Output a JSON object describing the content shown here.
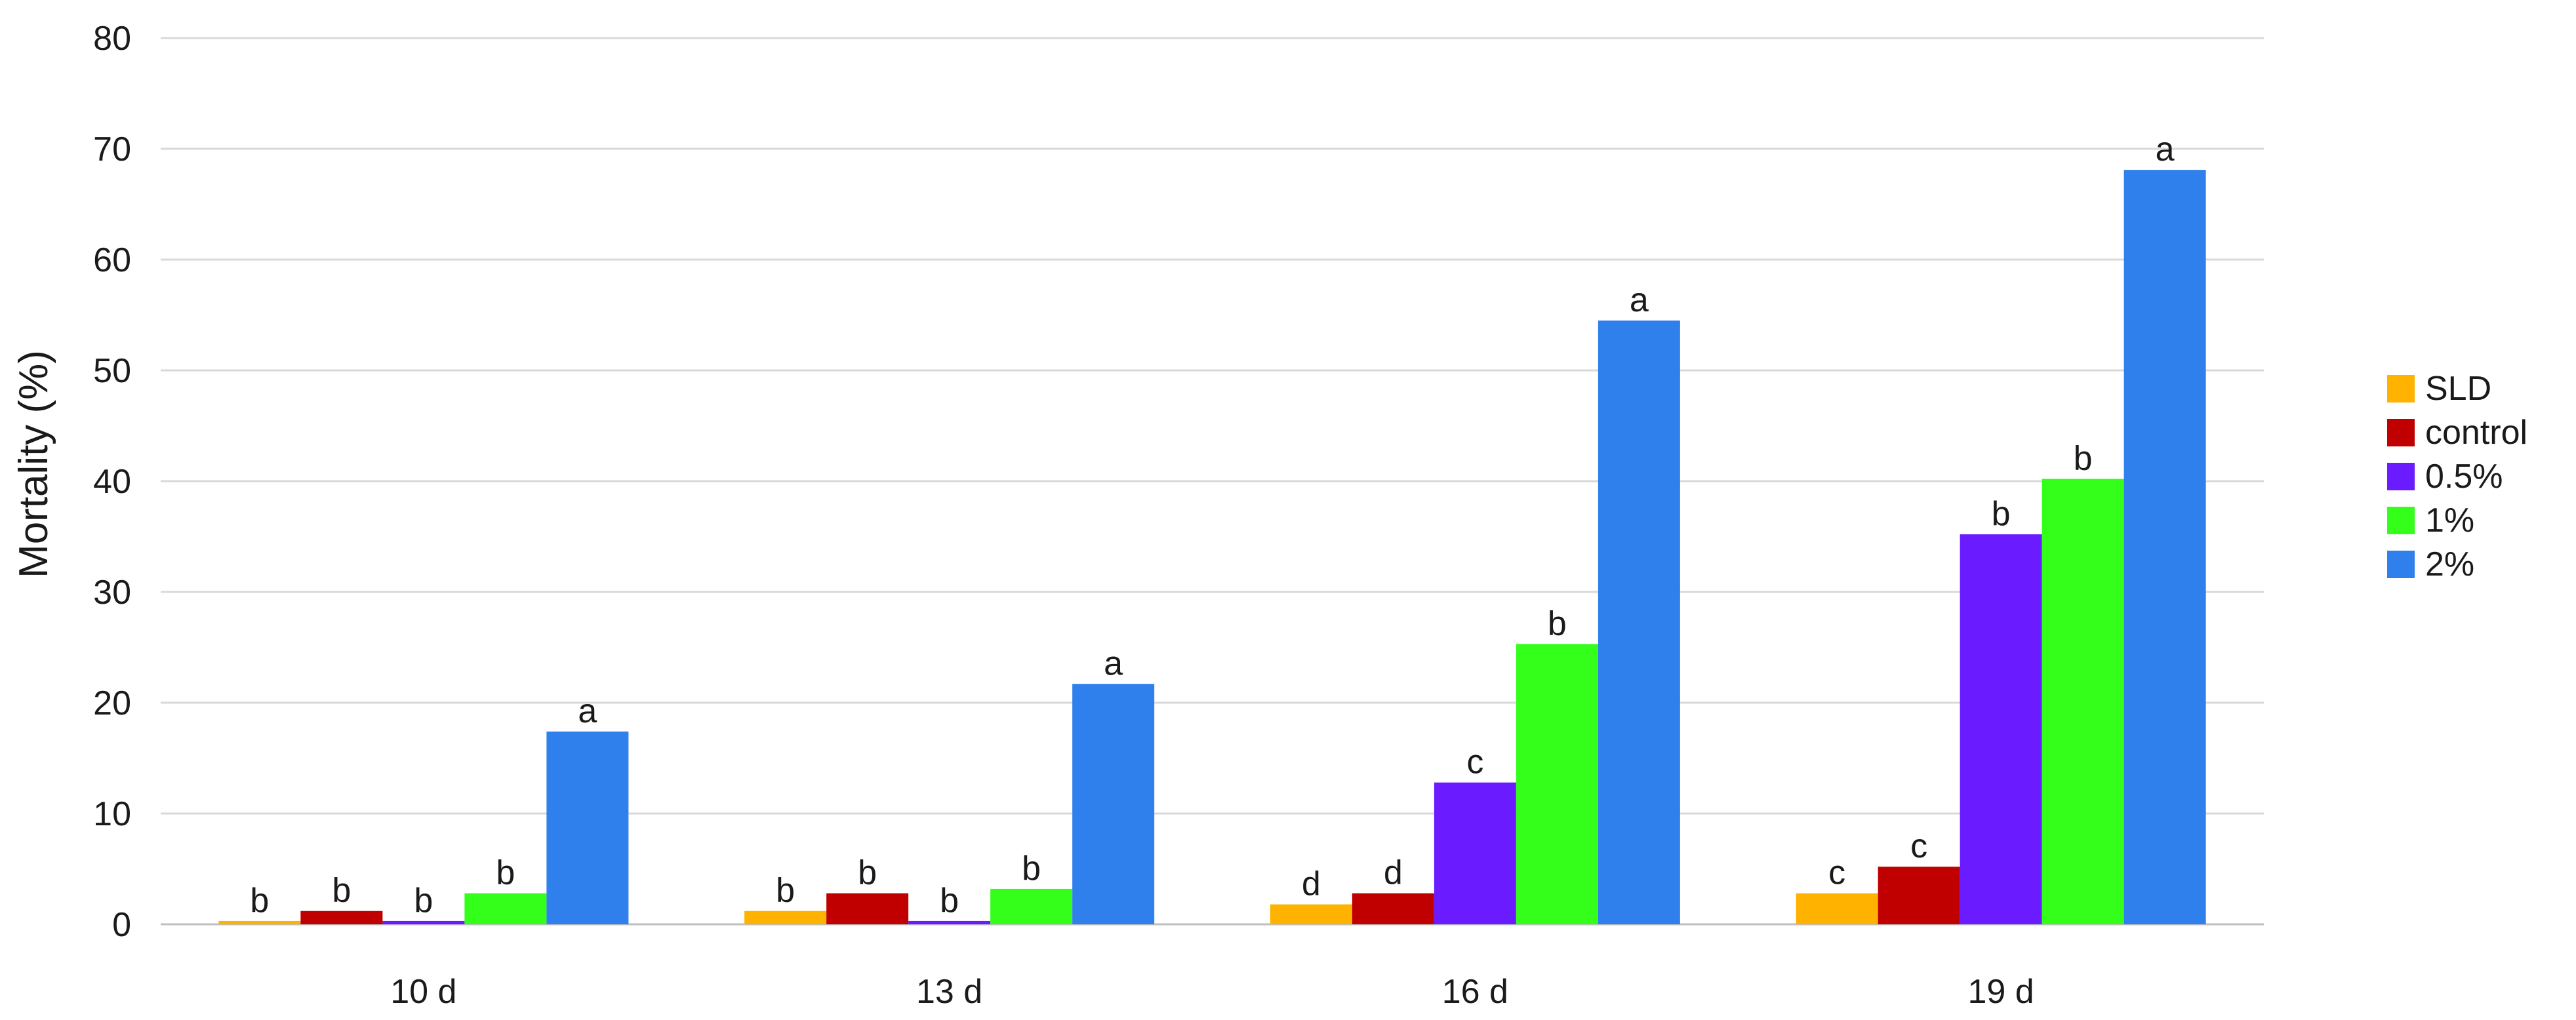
{
  "chart_data": {
    "type": "bar",
    "title": "",
    "xlabel": "",
    "ylabel": "Mortality (%)",
    "ylim": [
      0,
      80
    ],
    "yticks": [
      0,
      10,
      20,
      30,
      40,
      50,
      60,
      70,
      80
    ],
    "grid": true,
    "legend_position": "right",
    "categories": [
      "10 d",
      "13 d",
      "16 d",
      "19 d"
    ],
    "series": [
      {
        "name": "SLD",
        "color": "#FFB300",
        "values": [
          0.3,
          1.2,
          1.8,
          2.8
        ],
        "labels": [
          "b",
          "b",
          "d",
          "c"
        ]
      },
      {
        "name": "control",
        "color": "#C00000",
        "values": [
          1.2,
          2.8,
          2.8,
          5.2
        ],
        "labels": [
          "b",
          "b",
          "d",
          "c"
        ]
      },
      {
        "name": "0.5%",
        "color": "#6A1BFF",
        "values": [
          0.3,
          0.3,
          12.8,
          35.2
        ],
        "labels": [
          "b",
          "b",
          "c",
          "b"
        ]
      },
      {
        "name": "1%",
        "color": "#33FF1A",
        "values": [
          2.8,
          3.2,
          25.3,
          40.2
        ],
        "labels": [
          "b",
          "b",
          "b",
          "b"
        ]
      },
      {
        "name": "2%",
        "color": "#2F80ED",
        "values": [
          17.4,
          21.7,
          54.5,
          68.1
        ],
        "labels": [
          "a",
          "a",
          "a",
          "a"
        ]
      }
    ]
  }
}
